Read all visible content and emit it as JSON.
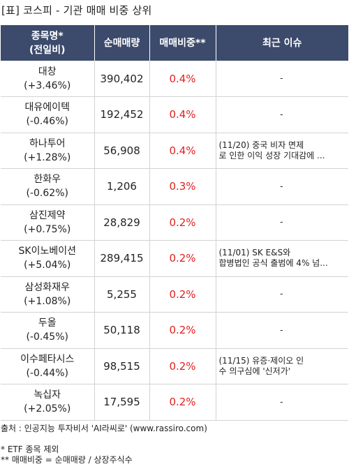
{
  "title": "[표] 코스피 - 기관 매매 비중 상위",
  "header": {
    "col_name_line1": "종목명*",
    "col_name_line2": "(전일비)",
    "col_volume": "순매매량",
    "col_ratio": "매매비중**",
    "col_issue": "최근 이슈"
  },
  "rows": [
    {
      "name": "대창",
      "change": "(+3.46%)",
      "volume": "390,402",
      "ratio": "0.4%",
      "issue": "-"
    },
    {
      "name": "대유에이텍",
      "change": "(-0.46%)",
      "volume": "192,452",
      "ratio": "0.4%",
      "issue": "-"
    },
    {
      "name": "하나투어",
      "change": "(+1.28%)",
      "volume": "56,908",
      "ratio": "0.4%",
      "issue": "(11/20) 중국 비자 면제\n로 인한 이익 성장 기대감에 ..."
    },
    {
      "name": "한화우",
      "change": "(-0.62%)",
      "volume": "1,206",
      "ratio": "0.3%",
      "issue": "-"
    },
    {
      "name": "삼진제약",
      "change": "(+0.75%)",
      "volume": "28,829",
      "ratio": "0.2%",
      "issue": "-"
    },
    {
      "name": "SK이노베이션",
      "change": "(+5.04%)",
      "volume": "289,415",
      "ratio": "0.2%",
      "issue": "(11/01) SK E&S와\n합병법인 공식 출범에 4% 넘..."
    },
    {
      "name": "삼성화재우",
      "change": "(+1.08%)",
      "volume": "5,255",
      "ratio": "0.2%",
      "issue": "-"
    },
    {
      "name": "두올",
      "change": "(-0.45%)",
      "volume": "50,118",
      "ratio": "0.2%",
      "issue": "-"
    },
    {
      "name": "이수페타시스",
      "change": "(-0.44%)",
      "volume": "98,515",
      "ratio": "0.2%",
      "issue": "(11/15) 유증·제이오 인\n수 의구심에 '신저가'"
    },
    {
      "name": "녹십자",
      "change": "(+2.05%)",
      "volume": "17,595",
      "ratio": "0.2%",
      "issue": "-"
    }
  ],
  "footer": {
    "source": "출처 : 인공지능 투자비서 'AI라씨로' (www.rassiro.com)",
    "note1": "* ETF 종목 제외",
    "note2": "** 매매비중 = 순매매량 / 상장주식수"
  },
  "colors": {
    "header_bg": "#3c4a6b",
    "ratio_text": "#e02020"
  }
}
